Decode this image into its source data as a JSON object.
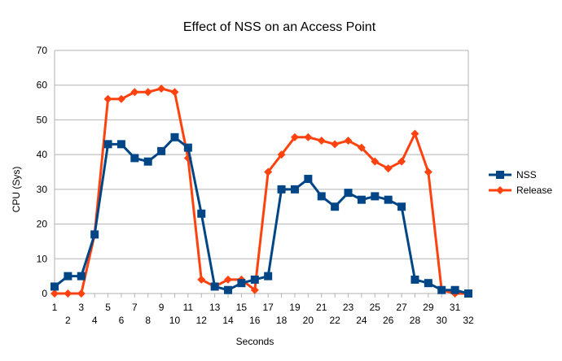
{
  "chart_data": {
    "type": "line",
    "title": "Effect of NSS on an Access Point",
    "xlabel": "Seconds",
    "ylabel": "CPU (Sys)",
    "x": [
      1,
      2,
      3,
      4,
      5,
      6,
      7,
      8,
      9,
      10,
      11,
      12,
      13,
      14,
      15,
      16,
      17,
      18,
      19,
      20,
      21,
      22,
      23,
      24,
      25,
      26,
      27,
      28,
      29,
      30,
      31,
      32
    ],
    "ylim": [
      0,
      70
    ],
    "yticks": [
      0,
      10,
      20,
      30,
      40,
      50,
      60,
      70
    ],
    "grid": true,
    "legend": "right",
    "series": [
      {
        "name": "NSS",
        "color": "#004586",
        "marker": "square",
        "values": [
          2,
          5,
          5,
          17,
          43,
          43,
          39,
          38,
          41,
          45,
          42,
          23,
          2,
          1,
          3,
          4,
          5,
          30,
          30,
          33,
          28,
          25,
          29,
          27,
          28,
          27,
          25,
          4,
          3,
          1,
          1,
          0
        ]
      },
      {
        "name": "Release",
        "color": "#ff420e",
        "marker": "diamond",
        "values": [
          0,
          0,
          0,
          17,
          56,
          56,
          58,
          58,
          59,
          58,
          39,
          4,
          2,
          4,
          4,
          1,
          35,
          40,
          45,
          45,
          44,
          43,
          44,
          42,
          38,
          36,
          38,
          46,
          35,
          1,
          0,
          0
        ]
      }
    ]
  }
}
